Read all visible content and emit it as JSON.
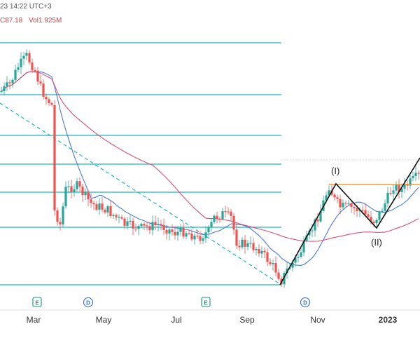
{
  "header": {
    "timestamp": "23 14:22 UTC+3",
    "close": "C87.18",
    "volume": "Vol1.925M"
  },
  "colors": {
    "up": "#26a69a",
    "down": "#ef5350",
    "fib_lines": "#1fb5c0",
    "sma_fast": "#4a79d9",
    "sma_slow": "#d9507a",
    "resistance": "#f0a030",
    "wave_lines": "#111111",
    "event_badge": "#1b8f7e",
    "dividend_badge": "#2f6fd6"
  },
  "chart_data": {
    "type": "candlestick",
    "title": "",
    "x_tick_labels": [
      "Mar",
      "May",
      "Jul",
      "Sep",
      "Nov",
      "2023"
    ],
    "horizontal_levels_count": 8,
    "wave_labels": [
      "(I)",
      "(II)"
    ],
    "event_markers": [
      {
        "type": "earnings",
        "symbol": "E",
        "near": "Feb"
      },
      {
        "type": "dividend",
        "symbol": "D",
        "near": "Apr"
      },
      {
        "type": "earnings",
        "symbol": "E",
        "near": "Aug"
      },
      {
        "type": "dividend",
        "symbol": "D",
        "near": "Oct"
      }
    ],
    "price_series_relative_shape": [
      0.82,
      0.78,
      0.86,
      0.9,
      0.82,
      0.7,
      0.38,
      0.42,
      0.44,
      0.38,
      0.4,
      0.34,
      0.36,
      0.3,
      0.34,
      0.28,
      0.3,
      0.24,
      0.28,
      0.32,
      0.36,
      0.34,
      0.28,
      0.22,
      0.18,
      0.14,
      0.06,
      0.02,
      0.18,
      0.3,
      0.42,
      0.36,
      0.34,
      0.36,
      0.32,
      0.4,
      0.44,
      0.48
    ],
    "legend": "none",
    "grid": false
  }
}
